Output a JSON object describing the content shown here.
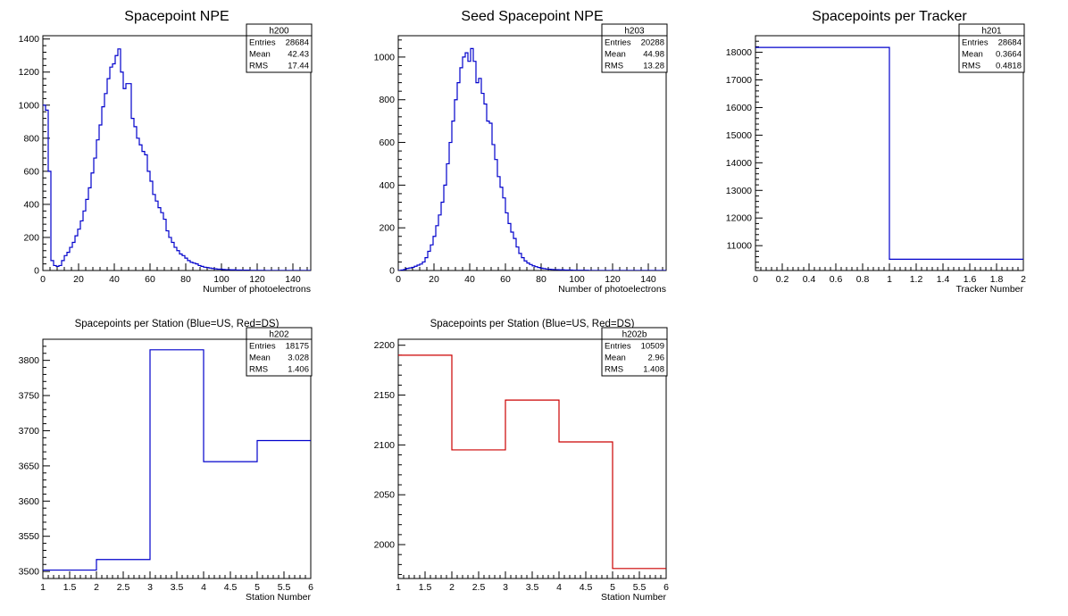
{
  "chart_data": [
    {
      "type": "histogram",
      "title": "Spacepoint NPE",
      "xlabel": "Number of photoelectrons",
      "ylabel": "",
      "xlim": [
        0,
        150
      ],
      "ylim": [
        0,
        1420
      ],
      "xticks": [
        0,
        20,
        40,
        60,
        80,
        100,
        120,
        140
      ],
      "yticks": [
        0,
        200,
        400,
        600,
        800,
        1000,
        1200,
        1400
      ],
      "line_color": "#0000cc",
      "stats": {
        "name": "h200",
        "entries": "28684",
        "mean": "42.43",
        "rms": "17.44"
      },
      "bin_width": 1.5,
      "x_start": 0,
      "values": [
        1000,
        970,
        600,
        60,
        30,
        25,
        30,
        60,
        90,
        110,
        140,
        170,
        210,
        250,
        300,
        360,
        430,
        500,
        590,
        680,
        790,
        880,
        990,
        1070,
        1160,
        1230,
        1250,
        1300,
        1340,
        1200,
        1100,
        1130,
        1130,
        920,
        870,
        800,
        760,
        720,
        700,
        600,
        540,
        460,
        420,
        380,
        350,
        310,
        240,
        200,
        170,
        140,
        120,
        100,
        90,
        75,
        60,
        50,
        45,
        40,
        30,
        25,
        20,
        18,
        15,
        12,
        10,
        8,
        8,
        6,
        5,
        5,
        4,
        4,
        3,
        3,
        2,
        2,
        2,
        1,
        1,
        1,
        1,
        1,
        1,
        0,
        0,
        0,
        0,
        0,
        0,
        0,
        0,
        0,
        0,
        0,
        0,
        0,
        0,
        0,
        0,
        0
      ]
    },
    {
      "type": "histogram",
      "title": "Seed Spacepoint NPE",
      "xlabel": "Number of photoelectrons",
      "ylabel": "",
      "xlim": [
        0,
        150
      ],
      "ylim": [
        0,
        1100
      ],
      "xticks": [
        0,
        20,
        40,
        60,
        80,
        100,
        120,
        140
      ],
      "yticks": [
        0,
        200,
        400,
        600,
        800,
        1000
      ],
      "line_color": "#0000cc",
      "stats": {
        "name": "h203",
        "entries": "20288",
        "mean": "44.98",
        "rms": "13.28"
      },
      "bin_width": 1.5,
      "x_start": 0,
      "values": [
        0,
        2,
        5,
        10,
        12,
        15,
        20,
        25,
        30,
        40,
        60,
        90,
        120,
        160,
        210,
        260,
        320,
        400,
        500,
        600,
        700,
        800,
        880,
        950,
        1000,
        1020,
        980,
        1040,
        980,
        880,
        900,
        830,
        780,
        700,
        690,
        590,
        520,
        440,
        390,
        340,
        270,
        220,
        180,
        150,
        110,
        80,
        60,
        45,
        35,
        28,
        22,
        18,
        14,
        11,
        9,
        7,
        6,
        5,
        4,
        4,
        3,
        3,
        2,
        2,
        2,
        1,
        1,
        1,
        1,
        1,
        1,
        0,
        0,
        0,
        0,
        0,
        0,
        0,
        0,
        0,
        0,
        0,
        0,
        0,
        0,
        0,
        0,
        0,
        0,
        0,
        0,
        0,
        0,
        0,
        0,
        0,
        0,
        0,
        0,
        0
      ]
    },
    {
      "type": "histogram",
      "title": "Spacepoints per Tracker",
      "xlabel": "Tracker Number",
      "ylabel": "",
      "xlim": [
        0,
        2
      ],
      "ylim": [
        10100,
        18600
      ],
      "xticks": [
        0,
        0.2,
        0.4,
        0.6,
        0.8,
        1,
        1.2,
        1.4,
        1.6,
        1.8,
        2
      ],
      "yticks": [
        11000,
        12000,
        13000,
        14000,
        15000,
        16000,
        17000,
        18000
      ],
      "line_color": "#0000cc",
      "stats": {
        "name": "h201",
        "entries": "28684",
        "mean": "0.3664",
        "rms": "0.4818"
      },
      "bin_width": 1,
      "x_start": 0,
      "values": [
        18175,
        10509
      ]
    },
    {
      "type": "histogram",
      "title": "Spacepoints per Station (Blue=US, Red=DS)",
      "xlabel": "Station Number",
      "ylabel": "",
      "xlim": [
        1,
        6
      ],
      "ylim": [
        3490,
        3830
      ],
      "xticks": [
        1,
        1.5,
        2,
        2.5,
        3,
        3.5,
        4,
        4.5,
        5,
        5.5,
        6
      ],
      "yticks": [
        3500,
        3550,
        3600,
        3650,
        3700,
        3750,
        3800
      ],
      "line_color": "#0000cc",
      "stats": {
        "name": "h202",
        "entries": "18175",
        "mean": "3.028",
        "rms": "1.406"
      },
      "bin_width": 1,
      "x_start": 1,
      "values": [
        3502,
        3517,
        3815,
        3656,
        3686
      ]
    },
    {
      "type": "histogram",
      "title": "Spacepoints per Station (Blue=US, Red=DS)",
      "xlabel": "Station Number",
      "ylabel": "",
      "xlim": [
        1,
        6
      ],
      "ylim": [
        1966,
        2206
      ],
      "xticks": [
        1,
        1.5,
        2,
        2.5,
        3,
        3.5,
        4,
        4.5,
        5,
        5.5,
        6
      ],
      "yticks": [
        2000,
        2050,
        2100,
        2150,
        2200
      ],
      "line_color": "#cc0000",
      "stats": {
        "name": "h202b",
        "entries": "10509",
        "mean": "2.96",
        "rms": "1.408"
      },
      "bin_width": 1,
      "x_start": 1,
      "values": [
        2190,
        2095,
        2145,
        2103,
        1976
      ]
    }
  ],
  "stats_labels": {
    "entries": "Entries",
    "mean": "Mean",
    "rms": "RMS"
  }
}
